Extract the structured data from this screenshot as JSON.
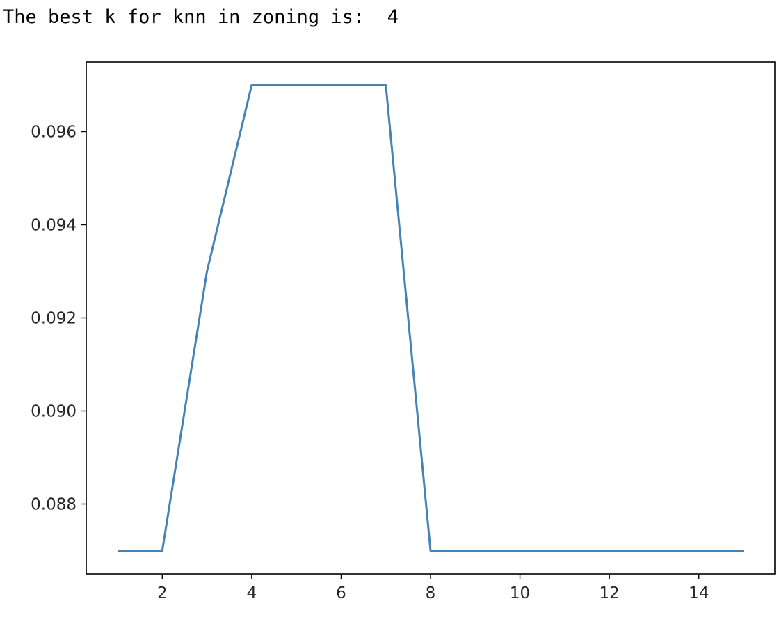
{
  "output": {
    "text": "The best k for knn in zoning is:  4"
  },
  "colors": {
    "line": "#4682b4",
    "axes": "#000000",
    "tick_text": "#262626"
  },
  "chart_data": {
    "type": "line",
    "title": "",
    "xlabel": "",
    "ylabel": "",
    "x": [
      1,
      2,
      3,
      4,
      5,
      6,
      7,
      8,
      9,
      10,
      11,
      12,
      13,
      14,
      15
    ],
    "series": [
      {
        "values": [
          0.087,
          0.087,
          0.093,
          0.097,
          0.097,
          0.097,
          0.097,
          0.087,
          0.087,
          0.087,
          0.087,
          0.087,
          0.087,
          0.087,
          0.087
        ]
      }
    ],
    "xlim": [
      0.3,
      15.7
    ],
    "ylim": [
      0.0865,
      0.0975
    ],
    "xticks": [
      2,
      4,
      6,
      8,
      10,
      12,
      14
    ],
    "yticks": [
      0.088,
      0.09,
      0.092,
      0.094,
      0.096
    ],
    "ytick_labels": [
      "0.088",
      "0.090",
      "0.092",
      "0.094",
      "0.096"
    ],
    "grid": false,
    "legend": "none"
  }
}
